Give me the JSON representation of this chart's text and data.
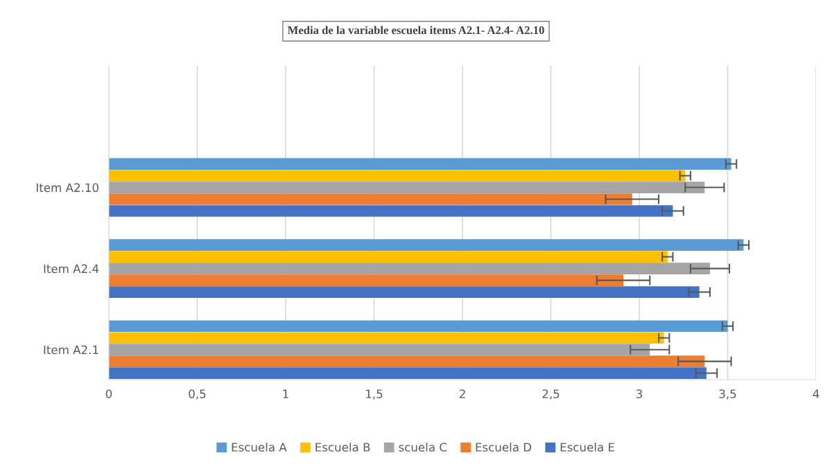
{
  "chart_data": {
    "type": "bar",
    "orientation": "horizontal",
    "title": "Media de la variable escuela items A2.1- A2.4- A2.10",
    "categories": [
      "Item A2.10",
      "Item A2.4",
      "Item A2.1"
    ],
    "series": [
      {
        "name": "Escuela A",
        "color": "#5b9bd5",
        "values": [
          3.52,
          3.59,
          3.5
        ],
        "errors": [
          0.03,
          0.03,
          0.03
        ]
      },
      {
        "name": "Escuela B",
        "color": "#ffc000",
        "values": [
          3.26,
          3.16,
          3.14
        ],
        "errors": [
          0.03,
          0.03,
          0.03
        ]
      },
      {
        "name": "scuela C",
        "color": "#a5a5a5",
        "values": [
          3.37,
          3.4,
          3.06
        ],
        "errors": [
          0.11,
          0.11,
          0.11
        ]
      },
      {
        "name": "Escuela D",
        "color": "#ed7d31",
        "values": [
          2.96,
          2.91,
          3.37
        ],
        "errors": [
          0.15,
          0.15,
          0.15
        ]
      },
      {
        "name": "Escuela E",
        "color": "#4472c4",
        "values": [
          3.19,
          3.34,
          3.38
        ],
        "errors": [
          0.06,
          0.06,
          0.06
        ]
      }
    ],
    "xlim": [
      0,
      4
    ],
    "xticks": [
      0,
      {
        "value": 0.5,
        "label": "0,5"
      },
      1,
      {
        "value": 1.5,
        "label": "1,5"
      },
      2,
      {
        "value": 2.5,
        "label": "2,5"
      },
      3,
      {
        "value": 3.5,
        "label": "3,5"
      },
      4
    ],
    "grid": "x",
    "legend": "bottom"
  }
}
